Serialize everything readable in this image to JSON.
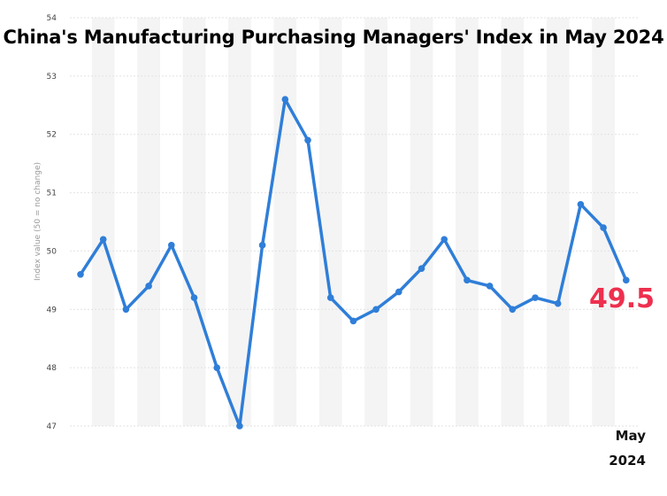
{
  "chart_data": {
    "type": "line",
    "title": "China's Manufacturing Purchasing Managers' Index in May 2024",
    "ylabel": "Index value (50 = no change)",
    "xlabel": "",
    "ylim": [
      47,
      54
    ],
    "yticks": [
      47,
      48,
      49,
      50,
      51,
      52,
      53,
      54
    ],
    "grid": true,
    "series": [
      {
        "values": [
          49.6,
          50.2,
          49.0,
          49.4,
          50.1,
          49.2,
          48.0,
          47.0,
          50.1,
          52.6,
          51.9,
          49.2,
          48.8,
          49.0,
          49.3,
          49.7,
          50.2,
          49.5,
          49.4,
          49.0,
          49.2,
          49.1,
          50.8,
          50.4,
          49.5
        ]
      }
    ],
    "color": "#2f7ed8",
    "callout": {
      "value": "49.5",
      "color": "#ee2f4e",
      "month": "May",
      "year": "2024"
    }
  }
}
